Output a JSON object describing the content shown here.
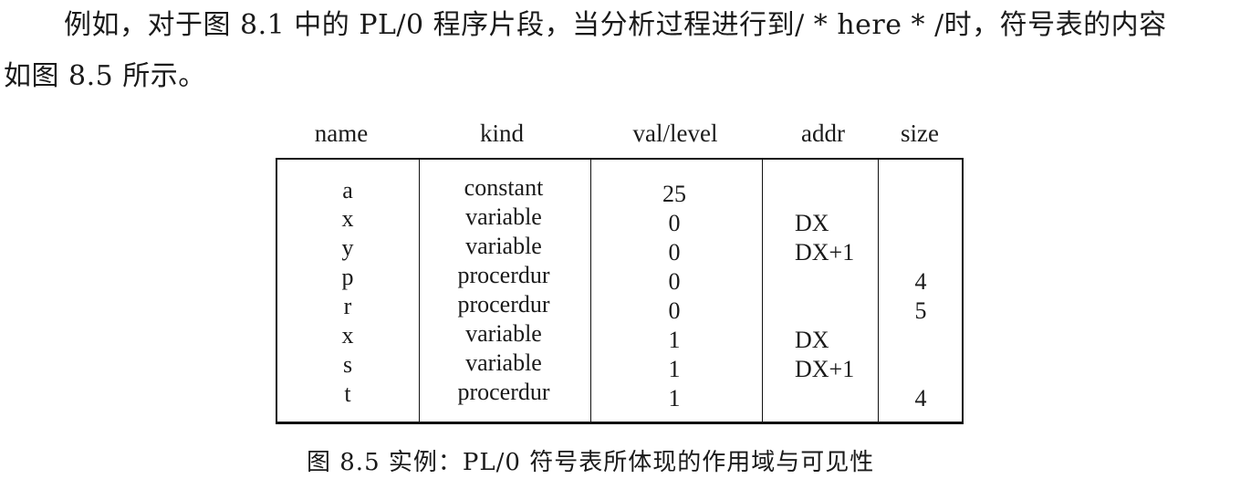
{
  "paragraph": {
    "line1": "例如，对于图 8.1 中的 PL/0 程序片段，当分析过程进行到/ * here * /时，符号表的内容",
    "line2": "如图 8.5 所示。"
  },
  "table": {
    "headers": [
      "name",
      "kind",
      "val/level",
      "addr",
      "size"
    ],
    "rows": [
      [
        "a",
        "constant",
        "25",
        "",
        ""
      ],
      [
        "x",
        "variable",
        "0",
        "DX",
        ""
      ],
      [
        "y",
        "variable",
        "0",
        "DX+1",
        ""
      ],
      [
        "p",
        "procerdur",
        "0",
        "",
        "4"
      ],
      [
        "r",
        "procerdur",
        "0",
        "",
        "5"
      ],
      [
        "x",
        "variable",
        "1",
        "DX",
        ""
      ],
      [
        "s",
        "variable",
        "1",
        "DX+1",
        ""
      ],
      [
        "t",
        "procerdur",
        "1",
        "",
        "4"
      ]
    ]
  },
  "caption": "图 8.5   实例：PL/0 符号表所体现的作用域与可见性"
}
